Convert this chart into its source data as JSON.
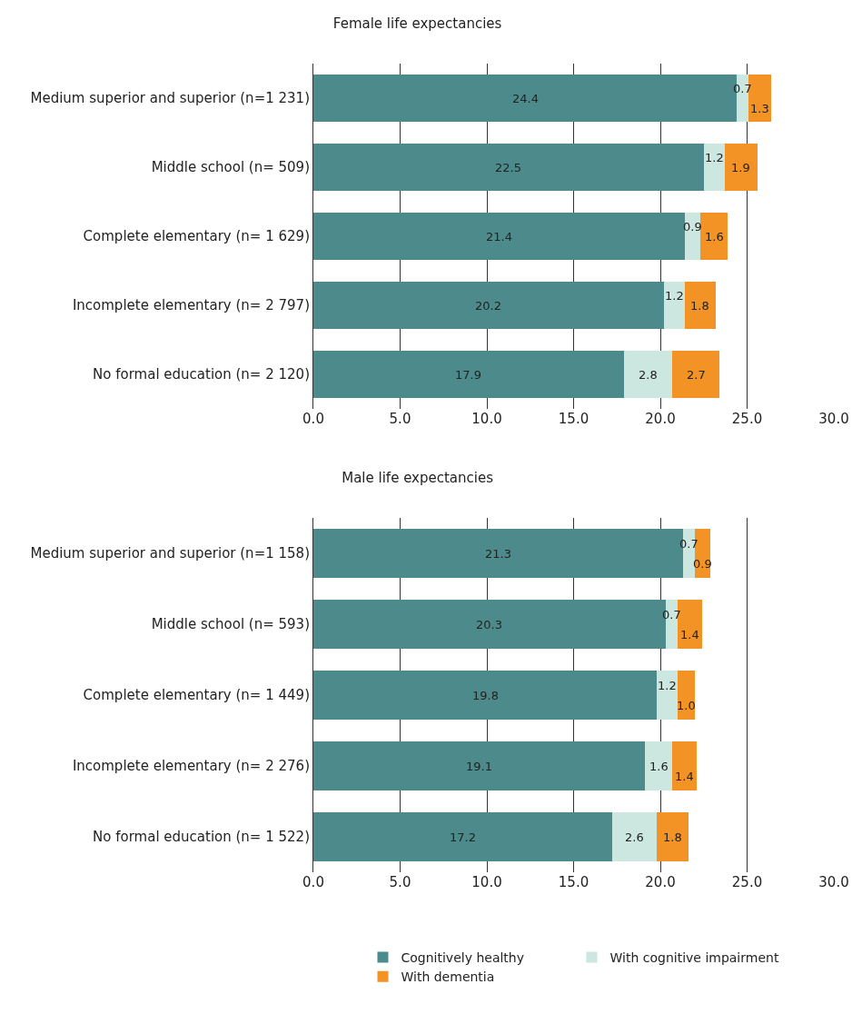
{
  "chart_data": [
    {
      "type": "bar",
      "title": "Female life expectancies",
      "orientation": "horizontal",
      "stacked": true,
      "categories": [
        "Medium superior and superior (n=1 231)",
        "Middle school (n= 509)",
        "Complete elementary (n= 1 629)",
        "Incomplete elementary (n= 2 797)",
        "No formal education (n= 2 120)"
      ],
      "series": [
        {
          "color": "#4d8a8b",
          "values": [
            24.4,
            22.5,
            21.4,
            20.2,
            17.9
          ],
          "value_labels": [
            "24.4",
            "22.5",
            "21.4",
            "20.2",
            "17.9"
          ]
        },
        {
          "color": "#cce6e0",
          "values": [
            0.7,
            1.2,
            0.9,
            1.2,
            2.8
          ],
          "value_labels": [
            "0.7",
            "1.2",
            "0.9",
            "1.2",
            "2.8"
          ]
        },
        {
          "color": "#f39325",
          "values": [
            1.3,
            1.9,
            1.6,
            1.8,
            2.7
          ],
          "value_labels": [
            "1.3",
            "1.9",
            "1.6",
            "1.8",
            "2.7"
          ]
        }
      ],
      "xlim": [
        0,
        30
      ],
      "xticks": [
        {
          "value": 0,
          "label": "0.0"
        },
        {
          "value": 5,
          "label": "5.0"
        },
        {
          "value": 10,
          "label": "10.0"
        },
        {
          "value": 15,
          "label": "15.0"
        },
        {
          "value": 20,
          "label": "20.0"
        },
        {
          "value": 25,
          "label": "25.0"
        },
        {
          "value": 30,
          "label": "30.0"
        }
      ],
      "grid": "x",
      "legend": false
    },
    {
      "type": "bar",
      "title": "Male life expectancies",
      "orientation": "horizontal",
      "stacked": true,
      "categories": [
        "Medium superior and superior (n=1 158)",
        "Middle school (n= 593)",
        "Complete elementary (n= 1 449)",
        "Incomplete elementary (n= 2 276)",
        "No formal education (n= 1 522)"
      ],
      "series": [
        {
          "name": "Cognitively healthy",
          "color": "#4d8a8b",
          "values": [
            21.3,
            20.3,
            19.8,
            19.1,
            17.2
          ],
          "value_labels": [
            "21.3",
            "20.3",
            "19.8",
            "19.1",
            "17.2"
          ]
        },
        {
          "name": "With cognitive impairment",
          "color": "#cce6e0",
          "values": [
            0.7,
            0.7,
            1.2,
            1.6,
            2.6
          ],
          "value_labels": [
            "0.7",
            "0.7",
            "1.2",
            "1.6",
            "2.6"
          ]
        },
        {
          "name": "With dementia",
          "color": "#f39325",
          "values": [
            0.9,
            1.4,
            1.0,
            1.4,
            1.8
          ],
          "value_labels": [
            "0.9",
            "1.4",
            "1.0",
            "1.4",
            "1.8"
          ]
        }
      ],
      "xlim": [
        0,
        30
      ],
      "xticks": [
        {
          "value": 0,
          "label": "0.0"
        },
        {
          "value": 5,
          "label": "5.0"
        },
        {
          "value": 10,
          "label": "10.0"
        },
        {
          "value": 15,
          "label": "15.0"
        },
        {
          "value": 20,
          "label": "20.0"
        },
        {
          "value": 25,
          "label": "25.0"
        },
        {
          "value": 30,
          "label": "30.0"
        }
      ],
      "grid": "x",
      "legend": "bottom"
    }
  ]
}
